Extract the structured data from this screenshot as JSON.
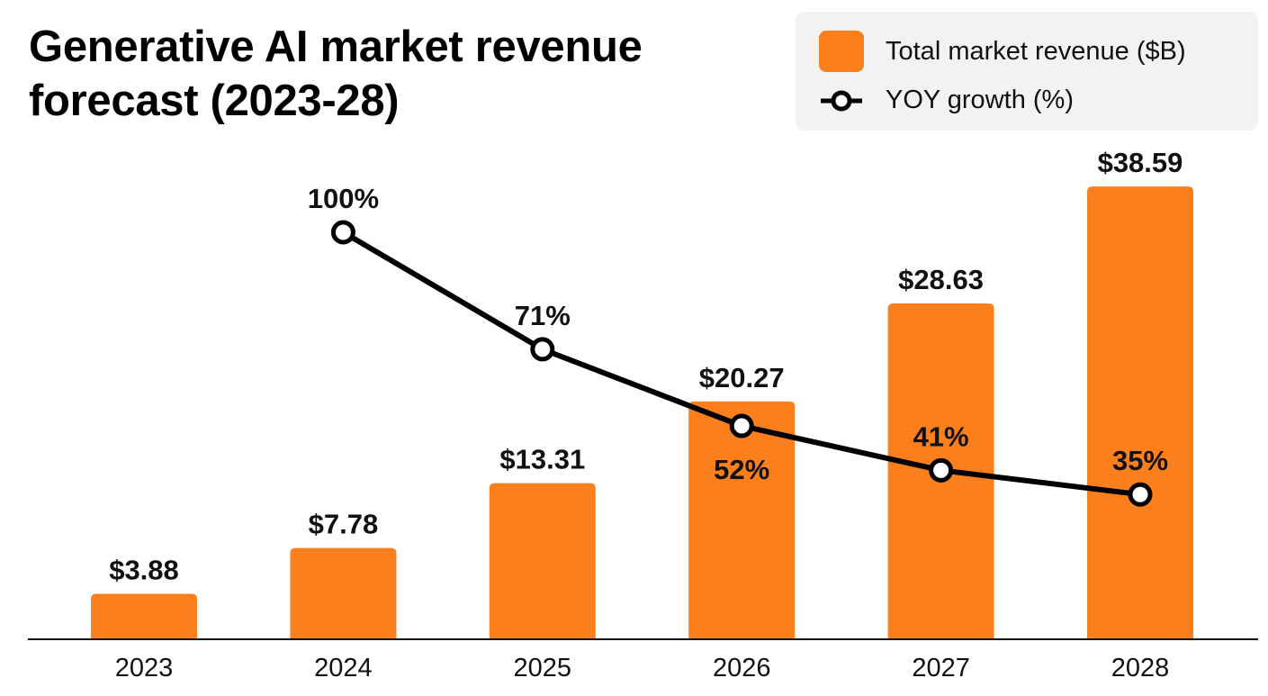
{
  "chart_data": {
    "type": "bar",
    "title": "Generative AI market revenue forecast (2023-28)",
    "categories": [
      "2023",
      "2024",
      "2025",
      "2026",
      "2027",
      "2028"
    ],
    "series": [
      {
        "name": "Total market revenue ($B)",
        "type": "bar",
        "values": [
          3.88,
          7.78,
          13.31,
          20.27,
          28.63,
          38.59
        ],
        "labels": [
          "$3.88",
          "$7.78",
          "$13.31",
          "$20.27",
          "$28.63",
          "$38.59"
        ],
        "color": "#FB7F1C"
      },
      {
        "name": "YOY growth (%)",
        "type": "line",
        "values": [
          null,
          100,
          71,
          52,
          41,
          35
        ],
        "labels": [
          "",
          "100%",
          "71%",
          "52%",
          "41%",
          "35%"
        ],
        "color": "#000000"
      }
    ],
    "legend_position": "top-right",
    "grid": false,
    "xlabel": "",
    "ylabel": ""
  }
}
